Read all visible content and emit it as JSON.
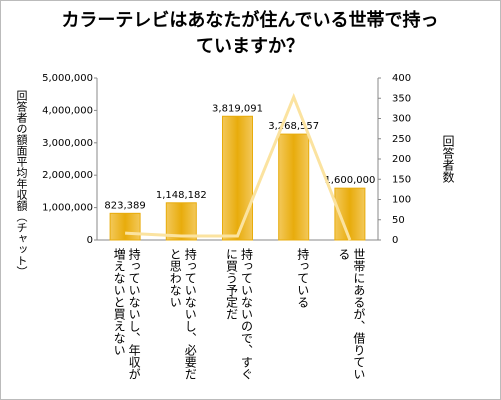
{
  "chart_data": {
    "type": "bar",
    "title": "カラーテレビはあなたが住んでいる世帯で持っていますか？",
    "y_label": "回答者の額面平均年収額（チャット）",
    "y2_label": "回答者数",
    "categories": [
      "持っていないし、年収が増えないと買えない",
      "持っていないし、必要だと思わない",
      "持っていないので、すぐに買う予定だ",
      "持っている",
      "世帯にあるが、借りている"
    ],
    "series": [
      {
        "type": "bar",
        "color": "#e8ac0c",
        "values": [
          823389,
          1148182,
          3819091,
          3268557,
          1600000
        ],
        "value_labels": [
          "823,389",
          "1,148,182",
          "3,819,091",
          "3,268,557",
          "1,600,000"
        ]
      },
      {
        "type": "line",
        "axis": "y2",
        "color": "#fbe3a0",
        "values": [
          17,
          10,
          10,
          353,
          0
        ]
      }
    ],
    "ylim": [
      0,
      5000000
    ],
    "yticks": [
      0,
      {
        "value": 1000000,
        "label": "1,000,000"
      },
      {
        "value": 2000000,
        "label": "2,000,000"
      },
      {
        "value": 3000000,
        "label": "3,000,000"
      },
      {
        "value": 4000000,
        "label": "4,000,000"
      },
      {
        "value": 5000000,
        "label": "5,000,000"
      }
    ],
    "y2lim": [
      0,
      400
    ],
    "y2ticks": [
      0,
      50,
      100,
      150,
      200,
      250,
      300,
      350,
      400
    ]
  }
}
